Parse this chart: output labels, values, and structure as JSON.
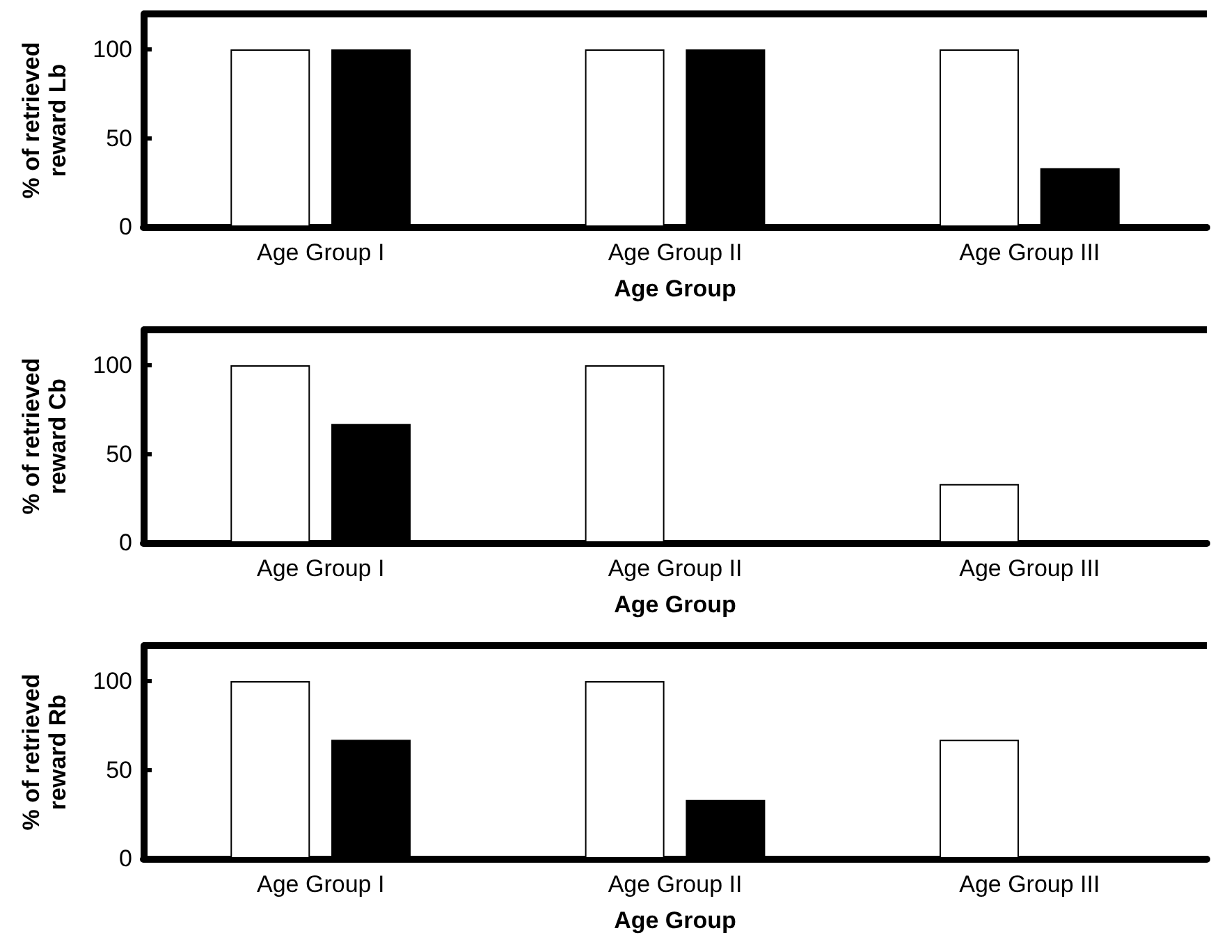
{
  "chart_data": [
    {
      "type": "bar",
      "xlabel": "Age Group",
      "ylabel": "% of retrieved reward Lb",
      "categories": [
        "Age Group I",
        "Age Group II",
        "Age Group III"
      ],
      "series": [
        {
          "color": "#ffffff",
          "values": [
            100,
            100,
            100
          ]
        },
        {
          "color": "#000000",
          "values": [
            100,
            100,
            33
          ]
        }
      ],
      "ylim": [
        0,
        120
      ],
      "yticks": [
        0,
        50,
        100
      ],
      "grid": false
    },
    {
      "type": "bar",
      "xlabel": "Age Group",
      "ylabel": "% of retrieved reward Cb",
      "categories": [
        "Age Group I",
        "Age Group II",
        "Age Group III"
      ],
      "series": [
        {
          "color": "#ffffff",
          "values": [
            100,
            100,
            33
          ]
        },
        {
          "color": "#000000",
          "values": [
            67,
            0,
            0
          ]
        }
      ],
      "ylim": [
        0,
        120
      ],
      "yticks": [
        0,
        50,
        100
      ],
      "grid": false
    },
    {
      "type": "bar",
      "xlabel": "Age Group",
      "ylabel": "% of retrieved reward Rb",
      "categories": [
        "Age Group I",
        "Age Group II",
        "Age Group III"
      ],
      "series": [
        {
          "color": "#ffffff",
          "values": [
            100,
            100,
            67
          ]
        },
        {
          "color": "#000000",
          "values": [
            67,
            33,
            0
          ]
        }
      ],
      "ylim": [
        0,
        120
      ],
      "yticks": [
        0,
        50,
        100
      ],
      "grid": false
    }
  ]
}
